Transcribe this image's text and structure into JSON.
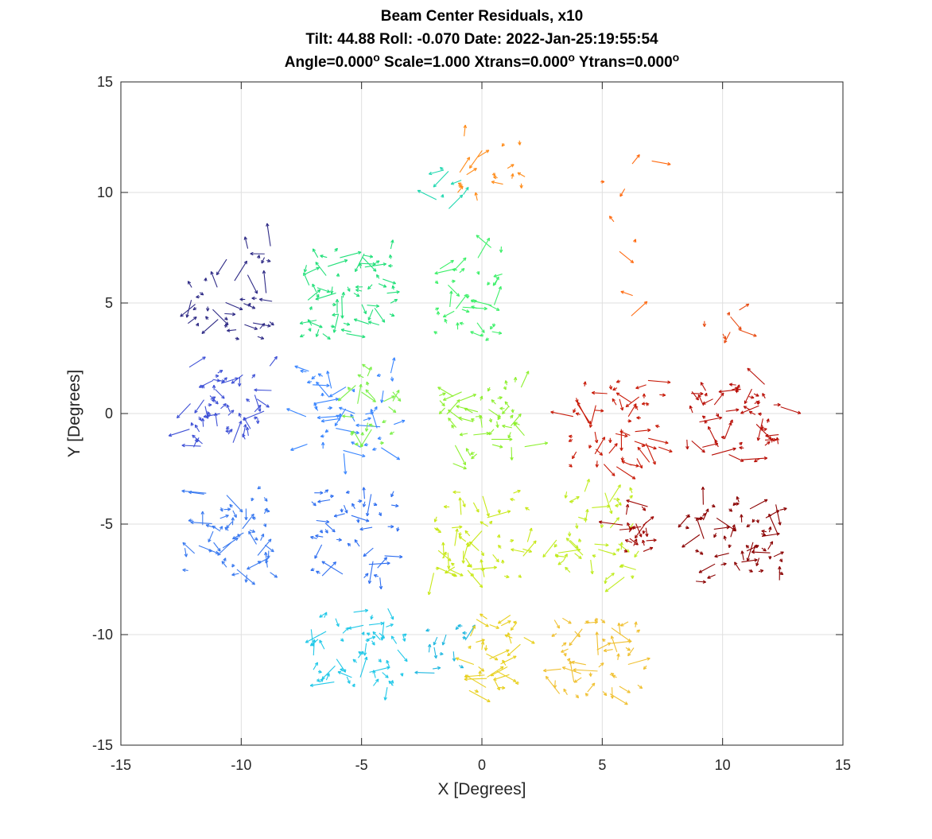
{
  "chart_data": {
    "type": "quiver",
    "title_lines": [
      "Beam Center Residuals, x10",
      "Tilt: 44.88  Roll: -0.070  Date: 2022-Jan-25:19:55:54"
    ],
    "title_params": [
      {
        "text": "Angle=0.000",
        "sup": "o"
      },
      {
        "text": " Scale=1.000 Xtrans=0.000",
        "sup": "o"
      },
      {
        "text": " Ytrans=0.000",
        "sup": "o"
      }
    ],
    "xlabel": "X [Degrees]",
    "ylabel": "Y [Degrees]",
    "xlim": [
      -15,
      15
    ],
    "ylim": [
      -15,
      15
    ],
    "xticks": [
      -15,
      -10,
      -5,
      0,
      5,
      10,
      15
    ],
    "yticks": [
      -15,
      -10,
      -5,
      0,
      5,
      10,
      15
    ],
    "xtick_labels": [
      "-15",
      "-10",
      "-5",
      "0",
      "5",
      "10",
      "15"
    ],
    "ytick_labels": [
      "-15",
      "-10",
      "-5",
      "0",
      "5",
      "10",
      "15"
    ],
    "grid": true,
    "scale_factor": 10,
    "colormap": "jet",
    "clusters": [
      {
        "center": [
          -10.5,
          5.5
        ],
        "w": 3.6,
        "h": 4.2,
        "color": "#2f2b86",
        "n": 40
      },
      {
        "center": [
          -5.5,
          5.5
        ],
        "w": 3.8,
        "h": 4.0,
        "color": "#22e07a",
        "n": 62
      },
      {
        "center": [
          -0.4,
          5.5
        ],
        "w": 3.6,
        "h": 4.2,
        "color": "#3ef06a",
        "n": 40
      },
      {
        "center": [
          0.5,
          11.2
        ],
        "w": 3.2,
        "h": 3.2,
        "color": "#ff8c1a",
        "n": 18
      },
      {
        "center": [
          -1.2,
          10.2
        ],
        "w": 1.4,
        "h": 2.0,
        "color": "#20d8b0",
        "n": 8
      },
      {
        "center": [
          6.0,
          8.0
        ],
        "w": 2.5,
        "h": 7.5,
        "color": "#ff6a10",
        "n": 9
      },
      {
        "center": [
          10.0,
          4.2
        ],
        "w": 1.6,
        "h": 1.2,
        "color": "#e84a10",
        "n": 7
      },
      {
        "center": [
          -10.5,
          0.3
        ],
        "w": 3.6,
        "h": 3.8,
        "color": "#3f51d6",
        "n": 55
      },
      {
        "center": [
          -5.5,
          0.0
        ],
        "w": 3.8,
        "h": 4.0,
        "color": "#3a86ff",
        "n": 45
      },
      {
        "center": [
          -4.6,
          0.3
        ],
        "w": 2.0,
        "h": 3.4,
        "color": "#7cf04a",
        "n": 25
      },
      {
        "center": [
          0.0,
          -0.4
        ],
        "w": 4.0,
        "h": 3.8,
        "color": "#8ef030",
        "n": 50
      },
      {
        "center": [
          5.5,
          -0.5
        ],
        "w": 4.0,
        "h": 4.0,
        "color": "#c81a08",
        "n": 55
      },
      {
        "center": [
          10.5,
          -0.4
        ],
        "w": 4.0,
        "h": 3.6,
        "color": "#b80e06",
        "n": 55
      },
      {
        "center": [
          -10.6,
          -5.3
        ],
        "w": 3.6,
        "h": 4.0,
        "color": "#3a7af0",
        "n": 55
      },
      {
        "center": [
          -5.3,
          -5.5
        ],
        "w": 3.8,
        "h": 4.0,
        "color": "#2e6ef0",
        "n": 45
      },
      {
        "center": [
          0.0,
          -5.5
        ],
        "w": 4.0,
        "h": 4.0,
        "color": "#c8e818",
        "n": 55
      },
      {
        "center": [
          4.8,
          -5.5
        ],
        "w": 3.6,
        "h": 4.0,
        "color": "#c0ec20",
        "n": 45
      },
      {
        "center": [
          6.3,
          -5.0
        ],
        "w": 1.4,
        "h": 2.6,
        "color": "#a00804",
        "n": 20
      },
      {
        "center": [
          10.4,
          -5.8
        ],
        "w": 4.0,
        "h": 3.6,
        "color": "#8b0000",
        "n": 60
      },
      {
        "center": [
          -5.2,
          -10.6
        ],
        "w": 4.0,
        "h": 3.6,
        "color": "#20c8e8",
        "n": 55
      },
      {
        "center": [
          -1.4,
          -11.0
        ],
        "w": 1.6,
        "h": 3.0,
        "color": "#20b8e0",
        "n": 15
      },
      {
        "center": [
          0.5,
          -10.8
        ],
        "w": 2.6,
        "h": 3.6,
        "color": "#e8d020",
        "n": 35
      },
      {
        "center": [
          5.0,
          -11.0
        ],
        "w": 4.0,
        "h": 3.6,
        "color": "#f0c030",
        "n": 50
      }
    ]
  }
}
